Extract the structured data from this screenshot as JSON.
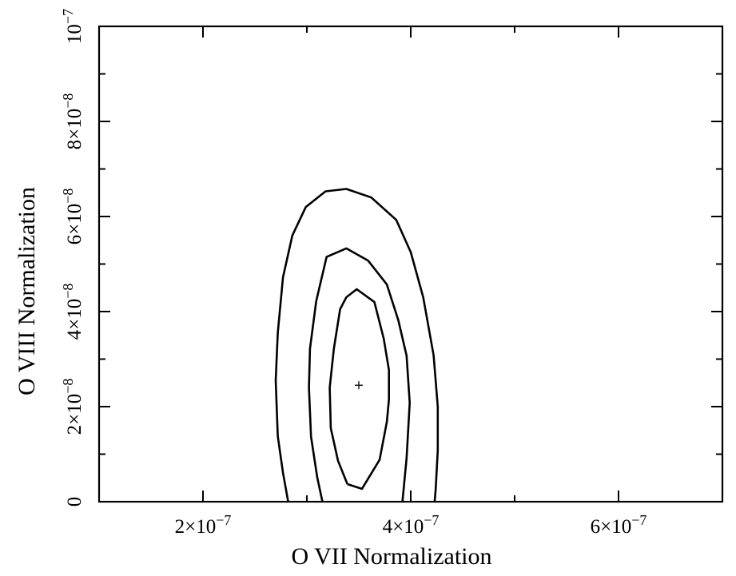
{
  "chart_data": {
    "type": "contour",
    "xlabel": "O VII Normalization",
    "ylabel": "O VIII Normalization",
    "xlim": [
      1e-07,
      7e-07
    ],
    "ylim": [
      0,
      1e-07
    ],
    "x_ticks": [
      {
        "value": 2e-07,
        "mantissa": "2",
        "exponent": "−7"
      },
      {
        "value": 4e-07,
        "mantissa": "4",
        "exponent": "−7"
      },
      {
        "value": 6e-07,
        "mantissa": "6",
        "exponent": "−7"
      }
    ],
    "x_minor_step": 1e-07,
    "y_ticks": [
      {
        "value": 0,
        "mantissa": "0",
        "exponent": ""
      },
      {
        "value": 2e-08,
        "mantissa": "2",
        "exponent": "−8"
      },
      {
        "value": 4e-08,
        "mantissa": "4",
        "exponent": "−8"
      },
      {
        "value": 6e-08,
        "mantissa": "6",
        "exponent": "−8"
      },
      {
        "value": 8e-08,
        "mantissa": "8",
        "exponent": "−8"
      },
      {
        "value": 1e-07,
        "mantissa": "10",
        "exponent": "−7"
      }
    ],
    "y_minor_step": 1e-08,
    "best_fit": {
      "x": 3.5e-07,
      "y": 2.45e-08
    },
    "contours": [
      {
        "level": "inner",
        "points": [
          [
            3.39e-07,
            3.7e-09
          ],
          [
            3.53e-07,
            2.7e-09
          ],
          [
            3.7e-07,
            8.8e-09
          ],
          [
            3.77e-07,
            1.68e-08
          ],
          [
            3.79e-07,
            2.15e-08
          ],
          [
            3.79e-07,
            2.77e-08
          ],
          [
            3.74e-07,
            3.43e-08
          ],
          [
            3.65e-07,
            4.2e-08
          ],
          [
            3.48e-07,
            4.47e-08
          ],
          [
            3.38e-07,
            4.3e-08
          ],
          [
            3.32e-07,
            4.05e-08
          ],
          [
            3.26e-07,
            3.22e-08
          ],
          [
            3.22e-07,
            2.4e-08
          ],
          [
            3.23e-07,
            1.55e-08
          ],
          [
            3.3e-07,
            8.6e-09
          ],
          [
            3.39e-07,
            3.7e-09
          ]
        ]
      },
      {
        "level": "middle",
        "points": [
          [
            3.15e-07,
            0
          ],
          [
            3.1e-07,
            5.1e-09
          ],
          [
            3.04e-07,
            1.37e-08
          ],
          [
            3.02e-07,
            2.4e-08
          ],
          [
            3.03e-07,
            3.22e-08
          ],
          [
            3.09e-07,
            4.22e-08
          ],
          [
            3.19e-07,
            5.15e-08
          ],
          [
            3.38e-07,
            5.33e-08
          ],
          [
            3.59e-07,
            5.07e-08
          ],
          [
            3.77e-07,
            4.57e-08
          ],
          [
            3.88e-07,
            3.82e-08
          ],
          [
            3.96e-07,
            3.07e-08
          ],
          [
            3.99e-07,
            2.08e-08
          ],
          [
            3.96e-07,
            9.2e-09
          ],
          [
            3.92e-07,
            0
          ]
        ]
      },
      {
        "level": "outer",
        "points": [
          [
            2.82e-07,
            0
          ],
          [
            2.77e-07,
            6.1e-09
          ],
          [
            2.72e-07,
            1.38e-08
          ],
          [
            2.7e-07,
            2.55e-08
          ],
          [
            2.72e-07,
            3.55e-08
          ],
          [
            2.77e-07,
            4.72e-08
          ],
          [
            2.86e-07,
            5.6e-08
          ],
          [
            2.99e-07,
            6.2e-08
          ],
          [
            3.18e-07,
            6.53e-08
          ],
          [
            3.38e-07,
            6.58e-08
          ],
          [
            3.62e-07,
            6.4e-08
          ],
          [
            3.86e-07,
            5.93e-08
          ],
          [
            4e-07,
            5.25e-08
          ],
          [
            4.12e-07,
            4.3e-08
          ],
          [
            4.22e-07,
            3.08e-08
          ],
          [
            4.26e-07,
            2e-08
          ],
          [
            4.26e-07,
            1.08e-08
          ],
          [
            4.24e-07,
            2.6e-09
          ],
          [
            4.23e-07,
            0
          ]
        ]
      }
    ]
  }
}
